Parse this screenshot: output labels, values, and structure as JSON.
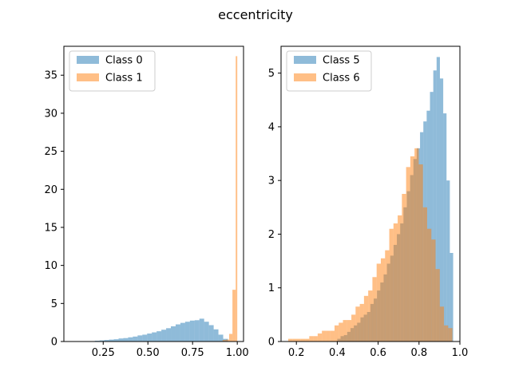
{
  "figure": {
    "title": "eccentricity"
  },
  "colors": {
    "blue": "#1f77b4",
    "orange": "#ff7f0e"
  },
  "chart_data": [
    {
      "type": "histogram",
      "title": "",
      "xlabel": "",
      "ylabel": "",
      "xlim": [
        0.03,
        1.035
      ],
      "ylim": [
        0,
        38.8
      ],
      "xticks": [
        0.25,
        0.5,
        0.75,
        1.0
      ],
      "xtick_labels": [
        "0.25",
        "0.50",
        "0.75",
        "1.00"
      ],
      "yticks": [
        0,
        5,
        10,
        15,
        20,
        25,
        30,
        35
      ],
      "ytick_labels": [
        "0",
        "5",
        "10",
        "15",
        "20",
        "25",
        "30",
        "35"
      ],
      "legend_position": "upper-left",
      "alpha": 0.5,
      "series": [
        {
          "name": "Class 0",
          "color": "#1f77b4",
          "bin_edges": [
            0.203,
            0.2296,
            0.2562,
            0.2828,
            0.3094,
            0.336,
            0.3626,
            0.3892,
            0.4158,
            0.4424,
            0.469,
            0.4956,
            0.5222,
            0.5488,
            0.5754,
            0.602,
            0.6286,
            0.6552,
            0.6818,
            0.7084,
            0.735,
            0.7616,
            0.7882,
            0.8148,
            0.8414,
            0.868,
            0.8946,
            0.9212,
            0.9478
          ],
          "values": [
            0.1,
            0.15,
            0.2,
            0.25,
            0.3,
            0.4,
            0.45,
            0.55,
            0.65,
            0.8,
            0.9,
            1.05,
            1.2,
            1.35,
            1.55,
            1.75,
            2.0,
            2.25,
            2.45,
            2.6,
            2.75,
            2.8,
            3.0,
            2.6,
            2.15,
            1.6,
            0.9,
            0.35
          ]
        },
        {
          "name": "Class 1",
          "color": "#ff7f0e",
          "bin_edges": [
            0.9178,
            0.9362,
            0.9546,
            0.973,
            0.9914,
            1.0
          ],
          "values": [
            0.2,
            0.25,
            1.0,
            6.8,
            37.5
          ]
        }
      ]
    },
    {
      "type": "histogram",
      "title": "",
      "xlabel": "",
      "ylabel": "",
      "xlim": [
        0.125,
        1.0
      ],
      "ylim": [
        0,
        5.5
      ],
      "xticks": [
        0.2,
        0.4,
        0.6,
        0.8,
        1.0
      ],
      "xtick_labels": [
        "0.2",
        "0.4",
        "0.6",
        "0.8",
        "1.0"
      ],
      "yticks": [
        0,
        1,
        2,
        3,
        4,
        5
      ],
      "ytick_labels": [
        "0",
        "1",
        "2",
        "3",
        "4",
        "5"
      ],
      "legend_position": "upper-left",
      "alpha": 0.5,
      "series": [
        {
          "name": "Class 5",
          "color": "#1f77b4",
          "bin_edges": [
            0.4,
            0.4162,
            0.4324,
            0.4486,
            0.4648,
            0.481,
            0.4972,
            0.5134,
            0.5296,
            0.5458,
            0.562,
            0.5782,
            0.5944,
            0.6106,
            0.6268,
            0.643,
            0.6592,
            0.6754,
            0.6916,
            0.7078,
            0.724,
            0.7402,
            0.7564,
            0.7726,
            0.7888,
            0.805,
            0.8212,
            0.8374,
            0.8536,
            0.8698,
            0.886,
            0.9022,
            0.9184,
            0.9346,
            0.9508,
            0.967
          ],
          "values": [
            0.05,
            0.1,
            0.12,
            0.18,
            0.25,
            0.3,
            0.35,
            0.45,
            0.5,
            0.55,
            0.7,
            0.8,
            0.95,
            1.1,
            1.25,
            1.45,
            1.6,
            1.8,
            2.0,
            2.2,
            2.5,
            2.8,
            3.1,
            3.4,
            3.6,
            3.9,
            4.1,
            4.3,
            4.65,
            5.05,
            5.3,
            4.9,
            4.25,
            3.0,
            1.65
          ]
        },
        {
          "name": "Class 6",
          "color": "#ff7f0e",
          "bin_edges": [
            0.16,
            0.1806,
            0.2012,
            0.2218,
            0.2424,
            0.263,
            0.2836,
            0.3042,
            0.3248,
            0.3454,
            0.366,
            0.3866,
            0.4072,
            0.4278,
            0.4484,
            0.469,
            0.4896,
            0.5102,
            0.5308,
            0.5514,
            0.572,
            0.5926,
            0.6132,
            0.6338,
            0.6544,
            0.675,
            0.6956,
            0.7162,
            0.7368,
            0.7574,
            0.778,
            0.7986,
            0.8192,
            0.8398,
            0.8604,
            0.881,
            0.9016,
            0.9222,
            0.9428,
            0.9634
          ],
          "values": [
            0.05,
            0.05,
            0.05,
            0.05,
            0.05,
            0.1,
            0.1,
            0.15,
            0.2,
            0.2,
            0.2,
            0.3,
            0.35,
            0.4,
            0.4,
            0.5,
            0.65,
            0.7,
            0.85,
            0.95,
            1.2,
            1.45,
            1.55,
            1.7,
            2.1,
            2.2,
            2.35,
            2.75,
            3.25,
            3.45,
            3.6,
            3.3,
            2.5,
            2.1,
            1.9,
            1.35,
            0.65,
            0.3,
            0.25
          ]
        }
      ]
    }
  ]
}
